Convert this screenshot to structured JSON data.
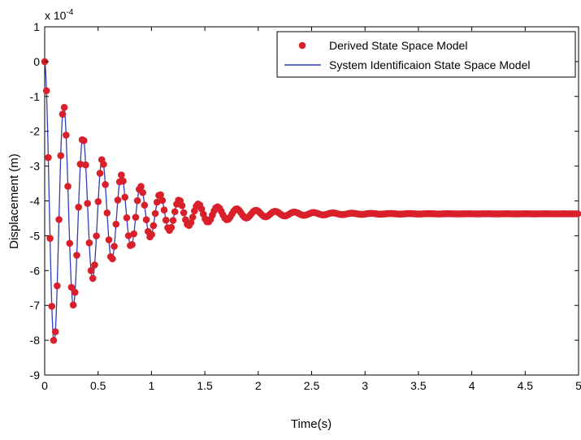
{
  "chart_data": {
    "type": "line",
    "xlabel": "Time(s)",
    "ylabel": "Displacement (m)",
    "y_multiplier": "x 10",
    "y_multiplier_exponent": "-4",
    "xlim": [
      0,
      5
    ],
    "ylim": [
      -9,
      1
    ],
    "x_ticks": [
      0,
      0.5,
      1,
      1.5,
      2,
      2.5,
      3,
      3.5,
      4,
      4.5,
      5
    ],
    "x_tick_labels": [
      "0",
      "0.5",
      "1",
      "1.5",
      "2",
      "2.5",
      "3",
      "3.5",
      "4",
      "4.5",
      "5"
    ],
    "y_ticks": [
      1,
      0,
      -1,
      -2,
      -3,
      -4,
      -5,
      -6,
      -7,
      -8,
      -9
    ],
    "y_tick_labels": [
      "1",
      "0",
      "-1",
      "-2",
      "-3",
      "-4",
      "-5",
      "-6",
      "-7",
      "-8",
      "-9"
    ],
    "grid": false,
    "legend_position": "top-right",
    "response": {
      "steady_state": -4.37,
      "initial": 0,
      "period": 0.18,
      "decay_rate": 1.9,
      "duration": 5,
      "sample_interval": 0.0167
    },
    "series": [
      {
        "name": "Derived State Space Model",
        "style": "markers",
        "color": "#d9202a"
      },
      {
        "name": "System Identificaion State Space Model",
        "style": "line",
        "color": "#2f3fb8"
      }
    ]
  }
}
